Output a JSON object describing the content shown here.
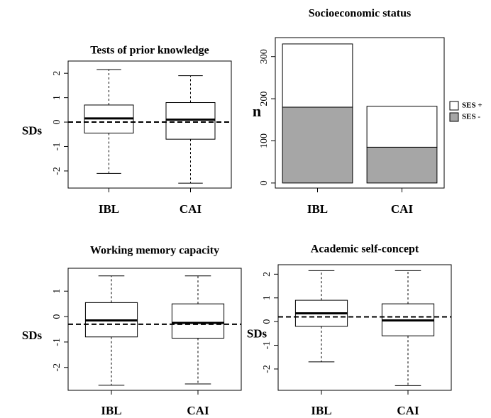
{
  "chart_data": [
    {
      "type": "box",
      "title": "Tests of prior knowledge",
      "ylabel": "SDs",
      "categories": [
        "IBL",
        "CAI"
      ],
      "boxes": [
        {
          "min": -2.1,
          "q1": -0.45,
          "median": 0.15,
          "q3": 0.7,
          "max": 2.15
        },
        {
          "min": -2.5,
          "q1": -0.7,
          "median": 0.1,
          "q3": 0.8,
          "max": 1.9
        }
      ],
      "mean_line": 0,
      "ylim": [
        -2.7,
        2.5
      ],
      "yticks": [
        -2,
        -1,
        0,
        1,
        2
      ]
    },
    {
      "type": "stacked_bar",
      "title": "Socioeconomic status",
      "ylabel": "n",
      "categories": [
        "IBL",
        "CAI"
      ],
      "series": [
        {
          "name": "SES -",
          "color": "#a6a6a6",
          "values": [
            180,
            85
          ]
        },
        {
          "name": "SES +",
          "color": "#ffffff",
          "values": [
            150,
            97
          ]
        }
      ],
      "ylim": [
        -12,
        345
      ],
      "yticks": [
        0,
        100,
        200,
        300
      ],
      "legend": "right"
    },
    {
      "type": "box",
      "title": "Working memory capacity",
      "ylabel": "SDs",
      "categories": [
        "IBL",
        "CAI"
      ],
      "boxes": [
        {
          "min": -2.7,
          "q1": -0.8,
          "median": -0.15,
          "q3": 0.55,
          "max": 1.6
        },
        {
          "min": -2.65,
          "q1": -0.85,
          "median": -0.25,
          "q3": 0.5,
          "max": 1.6
        }
      ],
      "mean_line": -0.3,
      "ylim": [
        -2.9,
        1.9
      ],
      "yticks": [
        -2,
        -1,
        0,
        1
      ]
    },
    {
      "type": "box",
      "title": "Academic self-concept",
      "ylabel": "SDs",
      "categories": [
        "IBL",
        "CAI"
      ],
      "boxes": [
        {
          "min": -1.7,
          "q1": -0.2,
          "median": 0.35,
          "q3": 0.9,
          "max": 2.15
        },
        {
          "min": -2.7,
          "q1": -0.6,
          "median": 0.05,
          "q3": 0.75,
          "max": 2.15
        }
      ],
      "mean_line": 0.2,
      "ylim": [
        -2.9,
        2.4
      ],
      "yticks": [
        -2,
        -1,
        0,
        1,
        2
      ]
    }
  ]
}
